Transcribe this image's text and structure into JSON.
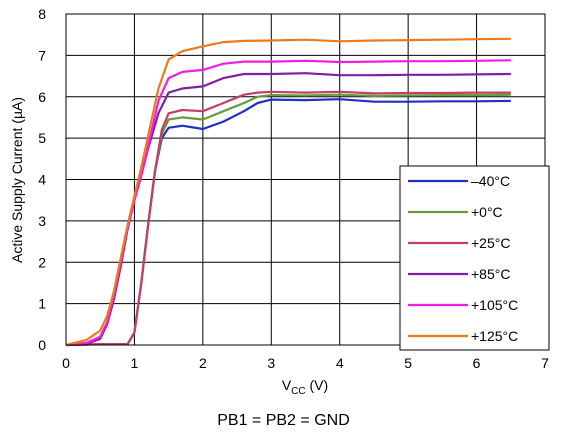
{
  "caption": "PB1 = PB2 = GND",
  "chart_data": {
    "type": "line",
    "title": "",
    "xlabel": {
      "main": "V",
      "sub": "CC",
      "unit": " (V)"
    },
    "ylabel": "Active Supply Current (µA)",
    "xlim": [
      0,
      7
    ],
    "ylim": [
      0,
      8
    ],
    "xticks": [
      0,
      1,
      2,
      3,
      4,
      5,
      6,
      7
    ],
    "yticks": [
      0,
      1,
      2,
      3,
      4,
      5,
      6,
      7,
      8
    ],
    "grid": true,
    "legend_position": "bottom-right",
    "series": [
      {
        "name": "–40°C",
        "color": "#1f2fc9",
        "points": [
          [
            0,
            0
          ],
          [
            0.5,
            0.02
          ],
          [
            0.9,
            0.02
          ],
          [
            1.0,
            0.3
          ],
          [
            1.1,
            1.5
          ],
          [
            1.2,
            2.9
          ],
          [
            1.3,
            4.2
          ],
          [
            1.4,
            5.0
          ],
          [
            1.5,
            5.25
          ],
          [
            1.7,
            5.3
          ],
          [
            2.0,
            5.22
          ],
          [
            2.3,
            5.4
          ],
          [
            2.6,
            5.65
          ],
          [
            2.8,
            5.85
          ],
          [
            3.0,
            5.93
          ],
          [
            3.5,
            5.92
          ],
          [
            4.0,
            5.94
          ],
          [
            4.5,
            5.88
          ],
          [
            5.0,
            5.88
          ],
          [
            5.5,
            5.89
          ],
          [
            6.0,
            5.89
          ],
          [
            6.5,
            5.9
          ]
        ]
      },
      {
        "name": "+0°C",
        "color": "#6a9a3a",
        "points": [
          [
            0,
            0
          ],
          [
            0.5,
            0.02
          ],
          [
            0.9,
            0.02
          ],
          [
            1.0,
            0.3
          ],
          [
            1.1,
            1.5
          ],
          [
            1.2,
            2.9
          ],
          [
            1.3,
            4.2
          ],
          [
            1.4,
            5.1
          ],
          [
            1.5,
            5.45
          ],
          [
            1.7,
            5.5
          ],
          [
            2.0,
            5.45
          ],
          [
            2.3,
            5.65
          ],
          [
            2.6,
            5.85
          ],
          [
            2.8,
            6.0
          ],
          [
            3.0,
            6.04
          ],
          [
            3.5,
            6.03
          ],
          [
            4.0,
            6.05
          ],
          [
            4.5,
            6.02
          ],
          [
            5.0,
            6.03
          ],
          [
            5.5,
            6.04
          ],
          [
            6.0,
            6.04
          ],
          [
            6.5,
            6.05
          ]
        ]
      },
      {
        "name": "+25°C",
        "color": "#c0406a",
        "points": [
          [
            0,
            0
          ],
          [
            0.5,
            0.02
          ],
          [
            0.9,
            0.02
          ],
          [
            1.0,
            0.3
          ],
          [
            1.1,
            1.5
          ],
          [
            1.2,
            2.9
          ],
          [
            1.3,
            4.2
          ],
          [
            1.4,
            5.2
          ],
          [
            1.5,
            5.6
          ],
          [
            1.7,
            5.68
          ],
          [
            2.0,
            5.65
          ],
          [
            2.3,
            5.85
          ],
          [
            2.6,
            6.05
          ],
          [
            2.8,
            6.1
          ],
          [
            3.0,
            6.12
          ],
          [
            3.5,
            6.1
          ],
          [
            4.0,
            6.12
          ],
          [
            4.5,
            6.08
          ],
          [
            5.0,
            6.09
          ],
          [
            5.5,
            6.09
          ],
          [
            6.0,
            6.1
          ],
          [
            6.5,
            6.1
          ]
        ]
      },
      {
        "name": "+85°C",
        "color": "#7e1fa8",
        "points": [
          [
            0,
            0
          ],
          [
            0.3,
            0.03
          ],
          [
            0.5,
            0.15
          ],
          [
            0.6,
            0.5
          ],
          [
            0.7,
            1.1
          ],
          [
            0.8,
            1.9
          ],
          [
            0.9,
            2.8
          ],
          [
            1.0,
            3.5
          ],
          [
            1.1,
            4.1
          ],
          [
            1.2,
            4.75
          ],
          [
            1.35,
            5.6
          ],
          [
            1.5,
            6.1
          ],
          [
            1.7,
            6.2
          ],
          [
            2.0,
            6.25
          ],
          [
            2.3,
            6.45
          ],
          [
            2.6,
            6.55
          ],
          [
            3.0,
            6.55
          ],
          [
            3.5,
            6.57
          ],
          [
            4.0,
            6.52
          ],
          [
            4.5,
            6.52
          ],
          [
            5.0,
            6.53
          ],
          [
            5.5,
            6.53
          ],
          [
            6.0,
            6.54
          ],
          [
            6.5,
            6.55
          ]
        ]
      },
      {
        "name": "+105°C",
        "color": "#ee1ee6",
        "points": [
          [
            0,
            0
          ],
          [
            0.3,
            0.05
          ],
          [
            0.5,
            0.2
          ],
          [
            0.6,
            0.55
          ],
          [
            0.7,
            1.2
          ],
          [
            0.8,
            2.0
          ],
          [
            0.9,
            2.85
          ],
          [
            1.0,
            3.5
          ],
          [
            1.1,
            4.1
          ],
          [
            1.2,
            4.8
          ],
          [
            1.35,
            5.9
          ],
          [
            1.5,
            6.45
          ],
          [
            1.7,
            6.6
          ],
          [
            2.0,
            6.65
          ],
          [
            2.3,
            6.8
          ],
          [
            2.6,
            6.85
          ],
          [
            3.0,
            6.85
          ],
          [
            3.5,
            6.87
          ],
          [
            4.0,
            6.84
          ],
          [
            4.5,
            6.85
          ],
          [
            5.0,
            6.86
          ],
          [
            5.5,
            6.86
          ],
          [
            6.0,
            6.87
          ],
          [
            6.5,
            6.88
          ]
        ]
      },
      {
        "name": "+125°C",
        "color": "#f07a1a",
        "points": [
          [
            0,
            0
          ],
          [
            0.3,
            0.12
          ],
          [
            0.5,
            0.35
          ],
          [
            0.6,
            0.7
          ],
          [
            0.7,
            1.3
          ],
          [
            0.8,
            2.1
          ],
          [
            0.9,
            2.9
          ],
          [
            1.0,
            3.6
          ],
          [
            1.1,
            4.3
          ],
          [
            1.2,
            5.05
          ],
          [
            1.35,
            6.2
          ],
          [
            1.5,
            6.9
          ],
          [
            1.7,
            7.1
          ],
          [
            2.0,
            7.22
          ],
          [
            2.3,
            7.32
          ],
          [
            2.6,
            7.35
          ],
          [
            3.0,
            7.36
          ],
          [
            3.5,
            7.38
          ],
          [
            4.0,
            7.34
          ],
          [
            4.5,
            7.36
          ],
          [
            5.0,
            7.37
          ],
          [
            5.5,
            7.38
          ],
          [
            6.0,
            7.39
          ],
          [
            6.5,
            7.4
          ]
        ]
      }
    ]
  }
}
